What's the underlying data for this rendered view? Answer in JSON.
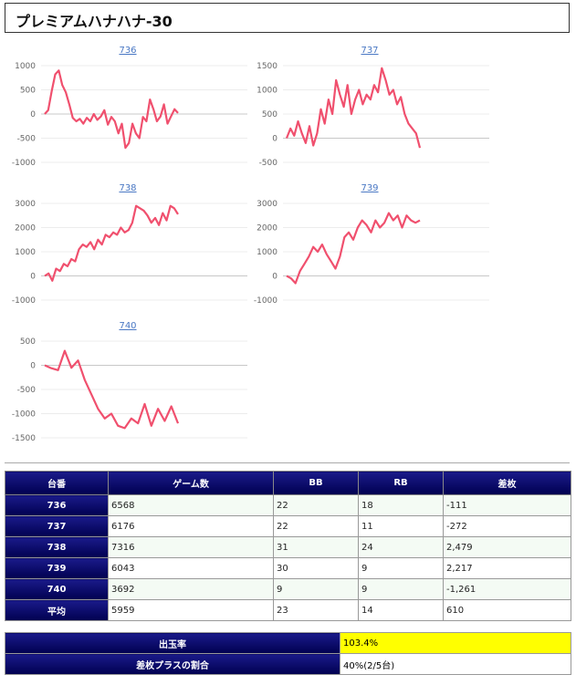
{
  "page": {
    "title": "プレミアムハナハナ-30"
  },
  "chart_data": [
    {
      "type": "line",
      "title": "736",
      "yticks": [
        1000,
        500,
        0,
        -500,
        -1000
      ],
      "ylim": [
        -1000,
        1000
      ],
      "color": "#f0506e",
      "y": [
        0,
        80,
        480,
        820,
        900,
        600,
        450,
        200,
        -80,
        -150,
        -100,
        -200,
        -80,
        -150,
        0,
        -120,
        -50,
        80,
        -220,
        -60,
        -150,
        -400,
        -200,
        -700,
        -600,
        -200,
        -400,
        -500,
        -60,
        -150,
        300,
        100,
        -150,
        -50,
        200,
        -200,
        -50,
        100,
        20
      ]
    },
    {
      "type": "line",
      "title": "737",
      "yticks": [
        1500,
        1000,
        500,
        0,
        -500
      ],
      "ylim": [
        -500,
        1500
      ],
      "color": "#f0506e",
      "y": [
        0,
        200,
        50,
        350,
        100,
        -100,
        250,
        -150,
        100,
        600,
        300,
        800,
        500,
        1200,
        900,
        650,
        1100,
        500,
        800,
        1000,
        700,
        900,
        800,
        1100,
        950,
        1450,
        1200,
        900,
        1000,
        700,
        850,
        500,
        300,
        200,
        100,
        -200
      ]
    },
    {
      "type": "line",
      "title": "738",
      "yticks": [
        3000,
        2000,
        1000,
        0,
        -1000
      ],
      "ylim": [
        -1000,
        3000
      ],
      "color": "#f0506e",
      "y": [
        0,
        100,
        -200,
        300,
        200,
        500,
        400,
        700,
        600,
        1100,
        1300,
        1200,
        1400,
        1100,
        1500,
        1300,
        1700,
        1600,
        1800,
        1700,
        2000,
        1800,
        1900,
        2200,
        2900,
        2800,
        2700,
        2500,
        2200,
        2400,
        2100,
        2600,
        2300,
        2900,
        2800,
        2550
      ]
    },
    {
      "type": "line",
      "title": "739",
      "yticks": [
        3000,
        2000,
        1000,
        0,
        -1000
      ],
      "ylim": [
        -1000,
        3000
      ],
      "color": "#f0506e",
      "y": [
        0,
        -100,
        -300,
        200,
        500,
        800,
        1200,
        1000,
        1300,
        900,
        600,
        300,
        800,
        1600,
        1800,
        1500,
        2000,
        2300,
        2100,
        1800,
        2300,
        2000,
        2200,
        2600,
        2300,
        2500,
        2000,
        2500,
        2300,
        2200,
        2300
      ]
    },
    {
      "type": "line",
      "title": "740",
      "yticks": [
        500,
        0,
        -500,
        -1000,
        -1500
      ],
      "ylim": [
        -1500,
        500
      ],
      "color": "#f0506e",
      "y": [
        0,
        -60,
        -100,
        300,
        -50,
        100,
        -300,
        -600,
        -900,
        -1100,
        -1000,
        -1250,
        -1300,
        -1100,
        -1200,
        -800,
        -1250,
        -900,
        -1150,
        -850,
        -1200
      ]
    }
  ],
  "table": {
    "headers": [
      "台番",
      "ゲーム数",
      "BB",
      "RB",
      "差枚"
    ],
    "rows": [
      {
        "id": "736",
        "games": "6568",
        "bb": "22",
        "rb": "18",
        "diff": "-111",
        "neg": true
      },
      {
        "id": "737",
        "games": "6176",
        "bb": "22",
        "rb": "11",
        "diff": "-272",
        "neg": true
      },
      {
        "id": "738",
        "games": "7316",
        "bb": "31",
        "rb": "24",
        "diff": "2,479",
        "neg": false
      },
      {
        "id": "739",
        "games": "6043",
        "bb": "30",
        "rb": "9",
        "diff": "2,217",
        "neg": false
      },
      {
        "id": "740",
        "games": "3692",
        "bb": "9",
        "rb": "9",
        "diff": "-1,261",
        "neg": true
      },
      {
        "id": "平均",
        "games": "5959",
        "bb": "23",
        "rb": "14",
        "diff": "610",
        "neg": false
      }
    ]
  },
  "summary": {
    "payout_label": "出玉率",
    "payout_value": "103.4%",
    "plus_label": "差枚プラスの割合",
    "plus_value": "40%(2/5台)"
  }
}
